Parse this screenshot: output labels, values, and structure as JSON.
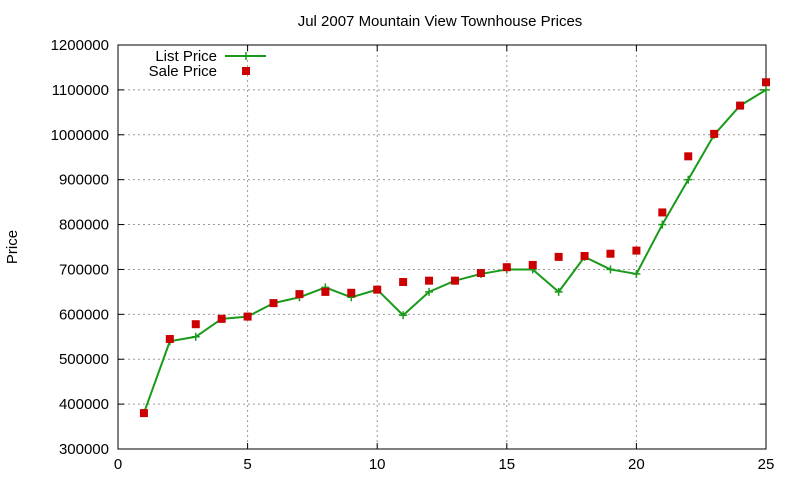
{
  "chart_data": {
    "type": "line",
    "title": "Jul 2007 Mountain View Townhouse Prices",
    "xlabel": "",
    "ylabel": "Price",
    "xlim": [
      0,
      25
    ],
    "ylim": [
      300000,
      1200000
    ],
    "xticks": [
      0,
      5,
      10,
      15,
      20,
      25
    ],
    "yticks": [
      300000,
      400000,
      500000,
      600000,
      700000,
      800000,
      900000,
      1000000,
      1100000,
      1200000
    ],
    "grid": true,
    "legend_position": "top-left",
    "series": [
      {
        "name": "List Price",
        "style": "line-with-plus-markers",
        "color": "#1a9a1a",
        "x": [
          1,
          2,
          3,
          4,
          5,
          6,
          7,
          8,
          9,
          10,
          11,
          12,
          13,
          14,
          15,
          16,
          17,
          18,
          19,
          20,
          21,
          22,
          23,
          24,
          25
        ],
        "y": [
          380000,
          540000,
          550000,
          590000,
          595000,
          625000,
          638000,
          660000,
          638000,
          655000,
          598000,
          650000,
          675000,
          690000,
          700000,
          700000,
          650000,
          728000,
          700000,
          690000,
          800000,
          900000,
          1000000,
          1065000,
          1100000
        ]
      },
      {
        "name": "Sale Price",
        "style": "square-markers",
        "color": "#cc0000",
        "x": [
          1,
          2,
          3,
          4,
          5,
          6,
          7,
          8,
          9,
          10,
          11,
          12,
          13,
          14,
          15,
          16,
          17,
          18,
          19,
          20,
          21,
          22,
          23,
          24,
          25
        ],
        "y": [
          380000,
          545000,
          578000,
          590000,
          595000,
          625000,
          645000,
          650000,
          648000,
          655000,
          672000,
          675000,
          675000,
          692000,
          705000,
          710000,
          728000,
          730000,
          735000,
          742000,
          827000,
          952000,
          1002000,
          1065000,
          1117000
        ]
      }
    ]
  }
}
